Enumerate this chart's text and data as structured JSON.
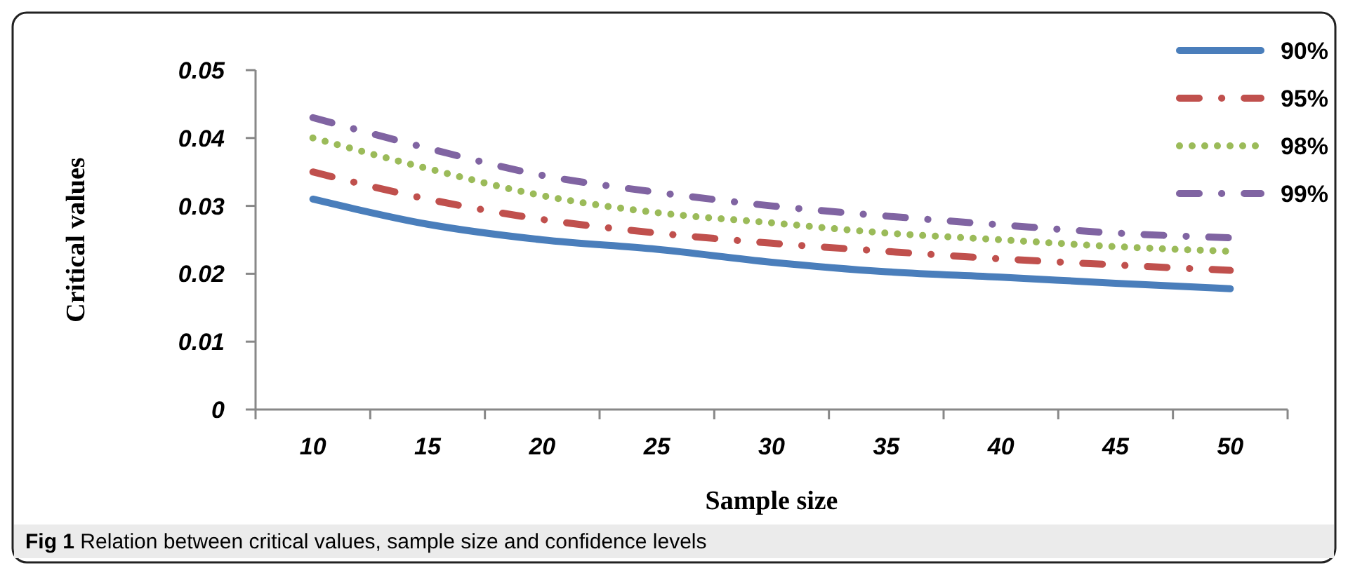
{
  "chart_data": {
    "type": "line",
    "xlabel": "Sample size",
    "ylabel": "Critical values",
    "categories": [
      "10",
      "15",
      "20",
      "25",
      "30",
      "35",
      "40",
      "45",
      "50"
    ],
    "series": [
      {
        "name": "90%",
        "color": "#4a7ebb",
        "line_style": "solid",
        "values": [
          0.031,
          0.0273,
          0.025,
          0.0236,
          0.0217,
          0.0203,
          0.0195,
          0.0186,
          0.0178
        ]
      },
      {
        "name": "95%",
        "color": "#c0504d",
        "line_style": "dashed",
        "values": [
          0.035,
          0.031,
          0.028,
          0.026,
          0.0245,
          0.0233,
          0.0222,
          0.0213,
          0.0205
        ]
      },
      {
        "name": "98%",
        "color": "#9bbb59",
        "line_style": "dotted",
        "values": [
          0.04,
          0.0355,
          0.0315,
          0.029,
          0.0275,
          0.026,
          0.025,
          0.024,
          0.0233
        ]
      },
      {
        "name": "99%",
        "color": "#8064a2",
        "line_style": "dashed",
        "values": [
          0.043,
          0.0385,
          0.0345,
          0.032,
          0.03,
          0.0285,
          0.0272,
          0.026,
          0.0253
        ]
      }
    ],
    "ylim": [
      0,
      0.05
    ],
    "yticks": [
      {
        "value": 0,
        "label": "0"
      },
      0.01,
      0.02,
      0.03,
      0.04,
      0.05
    ],
    "grid": false,
    "legend": "top right",
    "marker": "none",
    "annotations": [
      "Fig 1 Relation between critical values, sample size and confidence levels"
    ]
  }
}
